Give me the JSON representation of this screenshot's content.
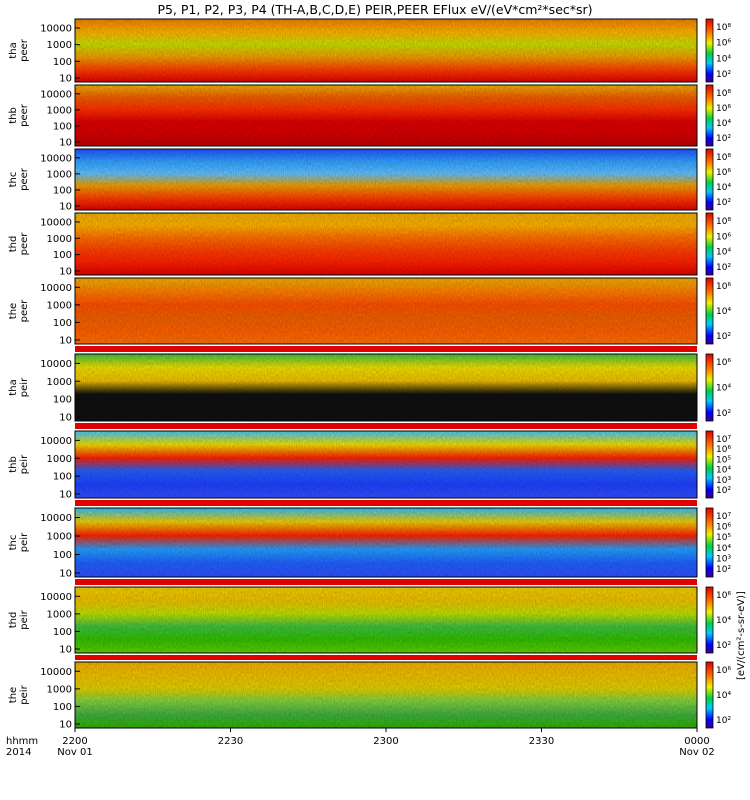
{
  "title": "P5, P1, P2, P3, P4 (TH-A,B,C,D,E) PEIR,PEER EFlux eV/(eV*cm²*sec*sr)",
  "x_axis": {
    "row1_label": "hhmm",
    "row2_label": "2014",
    "ticks": [
      {
        "time": "2200",
        "date": "Nov 01"
      },
      {
        "time": "2230",
        "date": ""
      },
      {
        "time": "2300",
        "date": ""
      },
      {
        "time": "2330",
        "date": ""
      },
      {
        "time": "0000",
        "date": "Nov 02"
      }
    ]
  },
  "colorbar_unit_label": "[eV/(cm²-s-sr-eV)]",
  "chart_data": [
    {
      "type": "heatmap",
      "probe": "tha",
      "product": "peer",
      "label_top": "tha",
      "label_bottom": "peer",
      "y_scale": "log",
      "y_ticks": [
        "10",
        "100",
        "1000",
        "10000"
      ],
      "z_ticks": [
        "10²",
        "10⁴",
        "10⁶",
        "10⁸"
      ],
      "time_range": [
        "2200",
        "0000"
      ],
      "palette": "rainbow"
    },
    {
      "type": "heatmap",
      "probe": "thb",
      "product": "peer",
      "label_top": "thb",
      "label_bottom": "peer",
      "y_scale": "log",
      "y_ticks": [
        "10",
        "100",
        "1000",
        "10000"
      ],
      "z_ticks": [
        "10²",
        "10⁴",
        "10⁶",
        "10⁸"
      ],
      "time_range": [
        "2200",
        "0000"
      ],
      "palette": "rainbow"
    },
    {
      "type": "heatmap",
      "probe": "thc",
      "product": "peer",
      "label_top": "thc",
      "label_bottom": "peer",
      "y_scale": "log",
      "y_ticks": [
        "10",
        "100",
        "1000",
        "10000"
      ],
      "z_ticks": [
        "10²",
        "10⁴",
        "10⁶",
        "10⁸"
      ],
      "time_range": [
        "2200",
        "0000"
      ],
      "palette": "rainbow"
    },
    {
      "type": "heatmap",
      "probe": "thd",
      "product": "peer",
      "label_top": "thd",
      "label_bottom": "peer",
      "y_scale": "log",
      "y_ticks": [
        "10",
        "100",
        "1000",
        "10000"
      ],
      "z_ticks": [
        "10²",
        "10⁴",
        "10⁶",
        "10⁸"
      ],
      "time_range": [
        "2200",
        "0000"
      ],
      "palette": "rainbow"
    },
    {
      "type": "heatmap",
      "probe": "the",
      "product": "peer",
      "label_top": "the",
      "label_bottom": "peer",
      "y_scale": "log",
      "y_ticks": [
        "10",
        "100",
        "1000",
        "10000"
      ],
      "z_ticks": [
        "10²",
        "10⁴",
        "10⁶"
      ],
      "time_range": [
        "2200",
        "0000"
      ],
      "palette": "rainbow"
    },
    {
      "type": "heatmap",
      "probe": "tha",
      "product": "peir",
      "label_top": "tha",
      "label_bottom": "peir",
      "y_scale": "log",
      "y_ticks": [
        "10",
        "100",
        "1000",
        "10000"
      ],
      "z_ticks": [
        "10²",
        "10⁴",
        "10⁶"
      ],
      "time_range": [
        "2200",
        "0000"
      ],
      "palette": "rainbow"
    },
    {
      "type": "heatmap",
      "probe": "thb",
      "product": "peir",
      "label_top": "thb",
      "label_bottom": "peir",
      "y_scale": "log",
      "y_ticks": [
        "10",
        "100",
        "1000",
        "10000"
      ],
      "z_ticks": [
        "10²",
        "10³",
        "10⁴",
        "10⁵",
        "10⁶",
        "10⁷"
      ],
      "time_range": [
        "2200",
        "0000"
      ],
      "palette": "rainbow"
    },
    {
      "type": "heatmap",
      "probe": "thc",
      "product": "peir",
      "label_top": "thc",
      "label_bottom": "peir",
      "y_scale": "log",
      "y_ticks": [
        "10",
        "100",
        "1000",
        "10000"
      ],
      "z_ticks": [
        "10²",
        "10³",
        "10⁴",
        "10⁵",
        "10⁶",
        "10⁷"
      ],
      "time_range": [
        "2200",
        "0000"
      ],
      "palette": "rainbow"
    },
    {
      "type": "heatmap",
      "probe": "thd",
      "product": "peir",
      "label_top": "thd",
      "label_bottom": "peir",
      "y_scale": "log",
      "y_ticks": [
        "10",
        "100",
        "1000",
        "10000"
      ],
      "z_ticks": [
        "10²",
        "10⁴",
        "10⁶"
      ],
      "time_range": [
        "2200",
        "0000"
      ],
      "palette": "rainbow"
    },
    {
      "type": "heatmap",
      "probe": "the",
      "product": "peir",
      "label_top": "the",
      "label_bottom": "peir",
      "y_scale": "log",
      "y_ticks": [
        "10",
        "100",
        "1000",
        "10000"
      ],
      "z_ticks": [
        "10²",
        "10⁴",
        "10⁶"
      ],
      "time_range": [
        "2200",
        "0000"
      ],
      "palette": "rainbow"
    }
  ]
}
